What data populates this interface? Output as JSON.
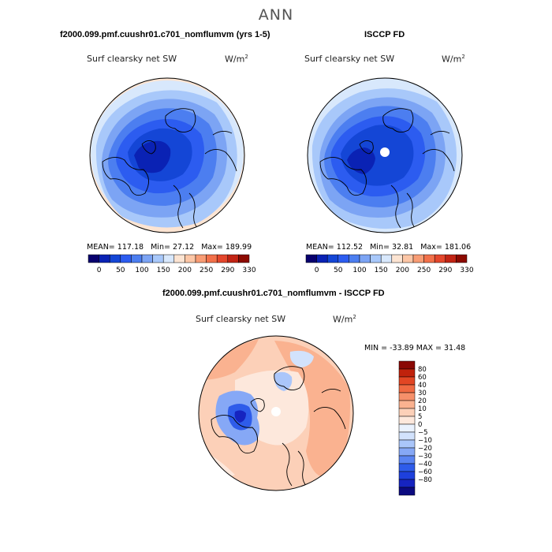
{
  "main_title": "ANN",
  "colors": {
    "abs_scale": [
      "#08006e",
      "#0a22b4",
      "#1446d6",
      "#2c5cf0",
      "#4c7ef0",
      "#7ca4f4",
      "#a8c8fa",
      "#d8e8fc",
      "#fce4d2",
      "#fcc6a6",
      "#f89c74",
      "#f2704a",
      "#e4472c",
      "#c22414",
      "#8c0a00"
    ],
    "diff_scale": [
      "#0c0a80",
      "#1624c0",
      "#1e40dc",
      "#2e5cea",
      "#5a84f2",
      "#86a8f6",
      "#aac6fa",
      "#d2e2fc",
      "#eaf2fe",
      "#fde8dc",
      "#fcd0b8",
      "#fab290",
      "#f6906a",
      "#f06a42",
      "#e24624",
      "#c0220c",
      "#8a0804"
    ],
    "coast": "#000000"
  },
  "panels": {
    "model": {
      "title": "f2000.099.pmf.cuushr01.c701_nomflumvm (yrs 1-5)",
      "left_label": "Surf clearsky net SW",
      "units": "W/m",
      "units_exp": "2",
      "mean_label": "MEAN=",
      "mean": "117.18",
      "min_label": "Min=",
      "min": "27.12",
      "max_label": "Max=",
      "max": "189.99"
    },
    "obs": {
      "title": "ISCCP FD",
      "left_label": "Surf clearsky net SW",
      "units": "W/m",
      "units_exp": "2",
      "mean_label": "MEAN=",
      "mean": "112.52",
      "min_label": "Min=",
      "min": "32.81",
      "max_label": "Max=",
      "max": "181.06"
    },
    "diff": {
      "title": "f2000.099.pmf.cuushr01.c701_nomflumvm - ISCCP FD",
      "left_label": "Surf clearsky net SW",
      "units": "W/m",
      "units_exp": "2",
      "min_label": "MIN =",
      "min": "-33.89",
      "max_label": "MAX =",
      "max": "31.48"
    }
  },
  "chart_data": [
    {
      "type": "heatmap",
      "projection": "polar-stereographic-north",
      "title": "f2000.099.pmf.cuushr01.c701_nomflumvm (yrs 1-5)",
      "variable": "Surf clearsky net SW",
      "units": "W/m2",
      "mean": 117.18,
      "min": 27.12,
      "max": 189.99,
      "contour_levels": [
        0,
        50,
        100,
        150,
        200,
        250,
        290,
        330
      ],
      "colorbar_tick_labels": [
        "0",
        "50",
        "100",
        "150",
        "200",
        "250",
        "290",
        "330"
      ],
      "colorbar_orientation": "horizontal"
    },
    {
      "type": "heatmap",
      "projection": "polar-stereographic-north",
      "title": "ISCCP FD",
      "variable": "Surf clearsky net SW",
      "units": "W/m2",
      "mean": 112.52,
      "min": 32.81,
      "max": 181.06,
      "contour_levels": [
        0,
        50,
        100,
        150,
        200,
        250,
        290,
        330
      ],
      "colorbar_tick_labels": [
        "0",
        "50",
        "100",
        "150",
        "200",
        "250",
        "290",
        "330"
      ],
      "colorbar_orientation": "horizontal",
      "missing_pole": true
    },
    {
      "type": "heatmap",
      "projection": "polar-stereographic-north",
      "title": "f2000.099.pmf.cuushr01.c701_nomflumvm - ISCCP FD",
      "variable": "Surf clearsky net SW",
      "units": "W/m2",
      "min": -33.89,
      "max": 31.48,
      "contour_levels": [
        -80,
        -60,
        -40,
        -30,
        -20,
        -10,
        -5,
        0,
        5,
        10,
        20,
        30,
        40,
        60,
        80
      ],
      "colorbar_tick_labels": [
        "80",
        "60",
        "40",
        "30",
        "20",
        "10",
        "5",
        "0",
        "−5",
        "−10",
        "−20",
        "−30",
        "−40",
        "−60",
        "−80"
      ],
      "colorbar_orientation": "vertical",
      "missing_pole": true
    }
  ]
}
